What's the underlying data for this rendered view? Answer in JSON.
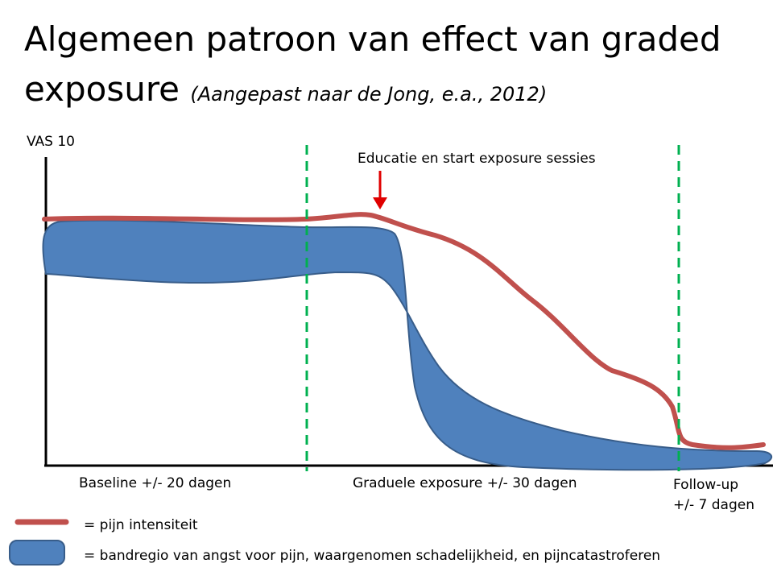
{
  "header": {
    "title": "Algemeen patroon van effect van graded exposure",
    "subtitle": "(Aangepast naar de Jong, e.a., 2012)"
  },
  "axis": {
    "y_label": "VAS 10"
  },
  "annotation": "Educatie en start exposure sessies",
  "phases": [
    "Baseline +/- 20 dagen",
    "Graduele exposure +/- 30 dagen",
    "Follow-up\n+/- 7 dagen"
  ],
  "legend": [
    "= pijn intensiteit",
    "= bandregio van angst voor pijn, waargenomen schadelijkheid, en pijncatastroferen"
  ]
}
